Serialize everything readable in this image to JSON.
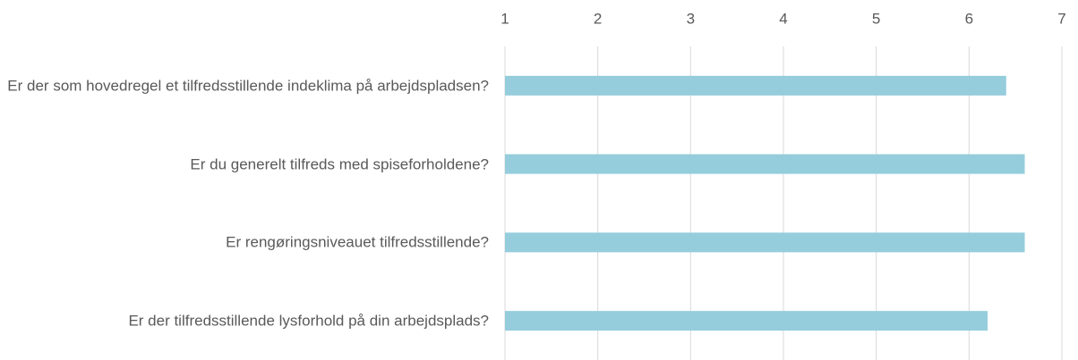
{
  "chart_data": {
    "type": "barh",
    "categories": [
      "Er der som hovedregel et tilfredsstillende indeklima på arbejdspladsen?",
      "Er du generelt tilfreds med spiseforholdene?",
      "Er rengøringsniveauet tilfredsstillende?",
      "Er der tilfredsstillende lysforhold på din arbejdsplads?"
    ],
    "values": [
      6.4,
      6.6,
      6.6,
      6.2
    ],
    "color": "#95cddc",
    "xlim": [
      1,
      7
    ],
    "xticks": [
      1,
      2,
      3,
      4,
      5,
      6,
      7
    ],
    "grid": true
  }
}
